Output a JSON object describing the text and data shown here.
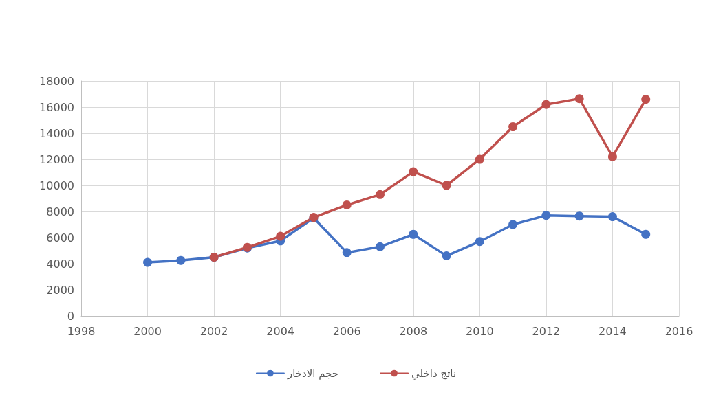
{
  "chart_data": {
    "type": "line",
    "series": [
      {
        "name": "حجم الادخار",
        "color": "#4472c4",
        "x": [
          2000,
          2001,
          2002,
          2003,
          2004,
          2005,
          2006,
          2007,
          2008,
          2009,
          2010,
          2011,
          2012,
          2013,
          2014,
          2015
        ],
        "values": [
          4100,
          4250,
          4500,
          5200,
          5750,
          7500,
          4850,
          5300,
          6250,
          4600,
          5700,
          7000,
          7700,
          7650,
          7600,
          6250
        ]
      },
      {
        "name": "ناتج داخلي",
        "color": "#c0504d",
        "x": [
          2002,
          2003,
          2004,
          2005,
          2006,
          2007,
          2008,
          2009,
          2010,
          2011,
          2012,
          2013,
          2014,
          2015
        ],
        "values": [
          4500,
          5250,
          6100,
          7550,
          8500,
          9300,
          11050,
          10000,
          12000,
          14500,
          16200,
          16650,
          12200,
          16600
        ]
      }
    ],
    "xlim": [
      1998,
      2016
    ],
    "xticks": [
      1998,
      2000,
      2002,
      2004,
      2006,
      2008,
      2010,
      2012,
      2014,
      2016
    ],
    "ylim": [
      0,
      18000
    ],
    "yticks": [
      0,
      2000,
      4000,
      6000,
      8000,
      10000,
      12000,
      14000,
      16000,
      18000
    ],
    "grid": true,
    "legend": "bottom",
    "marker": "circle",
    "line_style": "solid"
  }
}
